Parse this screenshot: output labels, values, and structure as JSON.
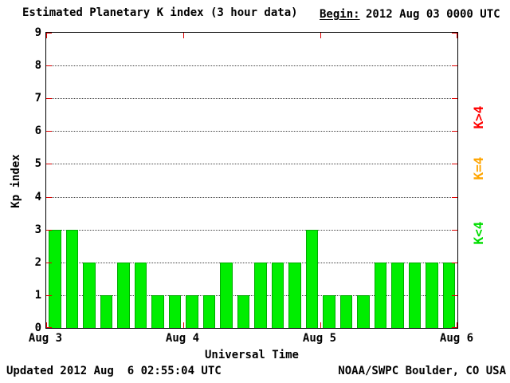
{
  "chart_data": {
    "type": "bar",
    "title": "Estimated Planetary K index (3 hour data)",
    "begin_label": "Begin:",
    "begin_value": "2012 Aug 03 0000 UTC",
    "xlabel": "Universal Time",
    "ylabel": "Kp index",
    "ylim": [
      0,
      9
    ],
    "y_ticks": [
      0,
      1,
      2,
      3,
      4,
      5,
      6,
      7,
      8,
      9
    ],
    "x_tick_labels": [
      "Aug 3",
      "Aug 4",
      "Aug 5",
      "Aug 6"
    ],
    "interval_hours": 3,
    "values": [
      3,
      3,
      2,
      1,
      2,
      2,
      1,
      1,
      1,
      1,
      2,
      1,
      2,
      2,
      2,
      3,
      1,
      1,
      1,
      2,
      2,
      2,
      2,
      2
    ],
    "bar_color": "#00ee00",
    "bar_border_color": "#00aa00",
    "tick_color": "#e00000",
    "grid": "dotted horizontal at each integer",
    "legend_position": "right",
    "legend": [
      {
        "label": "K>4",
        "color": "#ff0000"
      },
      {
        "label": "K=4",
        "color": "#ffa500"
      },
      {
        "label": "K<4",
        "color": "#00dd00"
      }
    ]
  },
  "footer": {
    "updated": "Updated 2012 Aug  6 02:55:04 UTC",
    "credit": "NOAA/SWPC Boulder, CO USA"
  }
}
